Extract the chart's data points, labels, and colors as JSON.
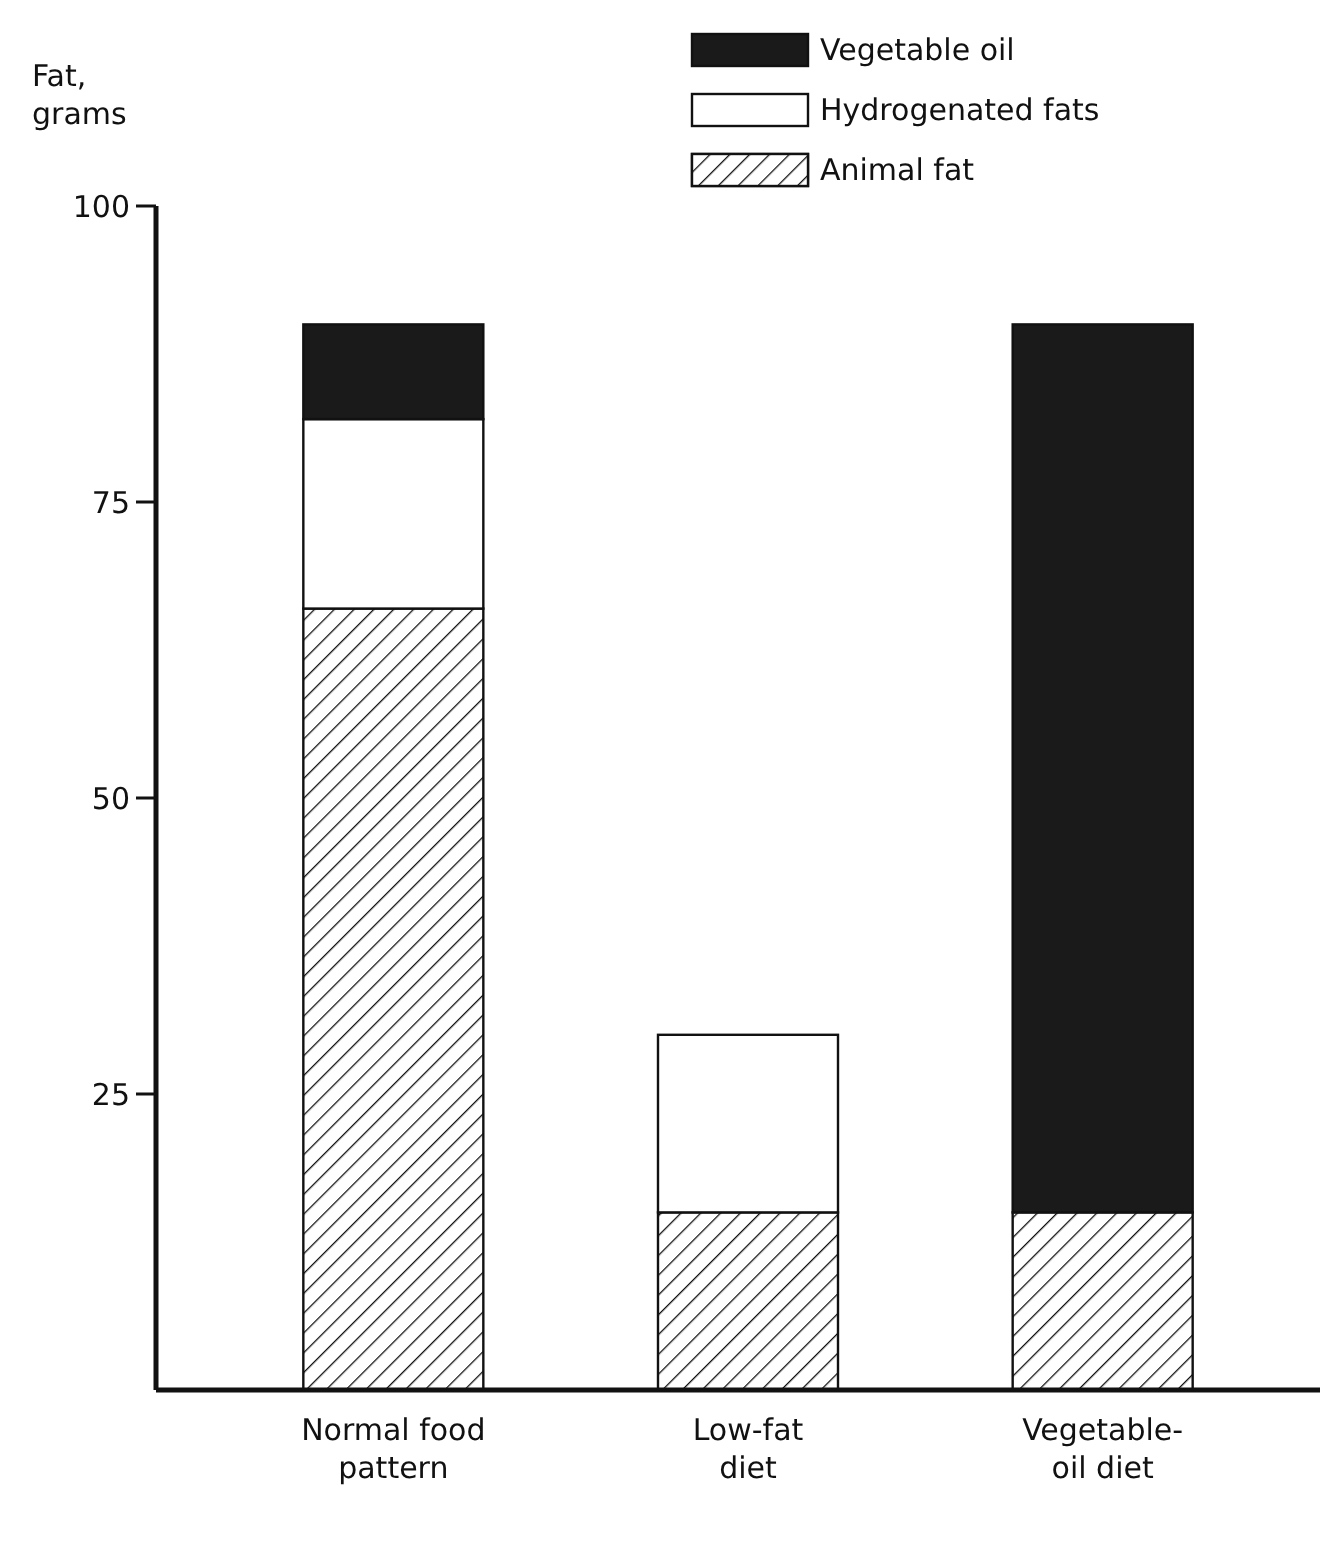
{
  "chart_data": {
    "type": "bar",
    "stacked": true,
    "ylabel": "Fat, grams",
    "categories": [
      "Normal food pattern",
      "Low-fat diet",
      "Vegetable-oil diet"
    ],
    "series": [
      {
        "name": "Animal fat",
        "color": "#111111",
        "values": [
          66,
          15,
          15
        ]
      },
      {
        "name": "Hydrogenated fats",
        "color": "#ffffff",
        "values": [
          16,
          15,
          0
        ]
      },
      {
        "name": "Vegetable oil",
        "color": "#1a1a1a",
        "values": [
          8,
          0,
          75
        ]
      }
    ],
    "ylim": [
      0,
      100
    ],
    "yticks": [
      25,
      50,
      75,
      100
    ],
    "legend": "top right"
  }
}
